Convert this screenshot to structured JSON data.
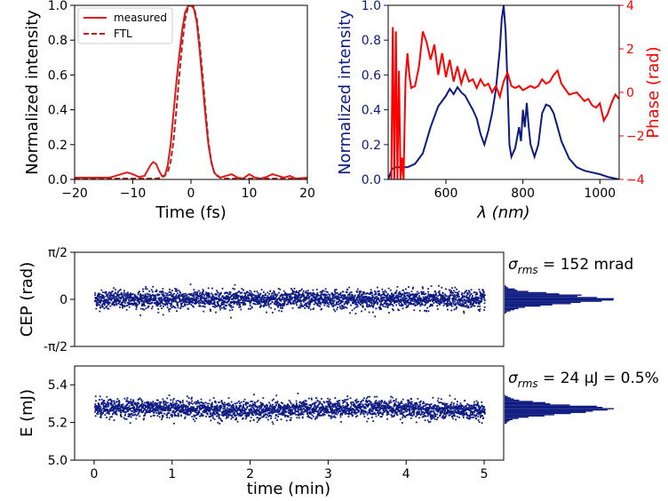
{
  "chart_data": [
    {
      "type": "line",
      "xlabel": "Time (fs)",
      "ylabel": "Normalized intensity",
      "xlim": [
        -20,
        20
      ],
      "ylim": [
        0,
        1.0
      ],
      "xticks": [
        -20,
        -10,
        0,
        10,
        20
      ],
      "yticks": [
        0.0,
        0.2,
        0.4,
        0.6,
        0.8,
        1.0
      ],
      "xtick_labels": [
        "−20",
        "−10",
        "0",
        "10",
        "20"
      ],
      "ytick_labels": [
        "0.0",
        "0.2",
        "0.4",
        "0.6",
        "0.8",
        "1.0"
      ],
      "legend": {
        "placement": "top-left",
        "entries": [
          "measured",
          "FTL"
        ]
      },
      "series": [
        {
          "name": "measured",
          "color": "#e31a1c",
          "style": "solid",
          "x": [
            -20,
            -14,
            -13,
            -12,
            -11,
            -10,
            -9,
            -8,
            -7.5,
            -7,
            -6.5,
            -6,
            -5.5,
            -5,
            -4.5,
            -4,
            -3.5,
            -3,
            -2.5,
            -2,
            -1.5,
            -1,
            -0.5,
            0,
            0.5,
            1,
            1.5,
            2,
            2.5,
            3,
            3.5,
            4,
            4.5,
            5,
            6,
            7,
            8,
            9,
            10,
            11,
            12,
            13,
            14,
            15,
            16,
            17,
            18,
            20
          ],
          "y": [
            0.01,
            0.01,
            0.02,
            0.03,
            0.04,
            0.03,
            0.015,
            0.02,
            0.05,
            0.08,
            0.1,
            0.09,
            0.05,
            0.02,
            0.02,
            0.08,
            0.2,
            0.38,
            0.56,
            0.72,
            0.86,
            0.96,
            0.995,
            1.0,
            0.98,
            0.9,
            0.74,
            0.55,
            0.36,
            0.2,
            0.1,
            0.04,
            0.02,
            0.01,
            0.02,
            0.03,
            0.01,
            0.005,
            0.03,
            0.01,
            0.005,
            0.015,
            0.03,
            0.02,
            0.01,
            0.02,
            0.005,
            0.01
          ]
        },
        {
          "name": "FTL",
          "color": "#b22222",
          "style": "dashed",
          "x": [
            -20,
            -6,
            -5,
            -4,
            -3.5,
            -3,
            -2.5,
            -2,
            -1.5,
            -1,
            -0.5,
            0,
            0.5,
            1,
            1.5,
            2,
            2.5,
            3,
            3.5,
            4,
            5,
            6,
            20
          ],
          "y": [
            0.005,
            0.005,
            0.01,
            0.04,
            0.1,
            0.22,
            0.4,
            0.6,
            0.78,
            0.92,
            0.99,
            1.0,
            0.99,
            0.92,
            0.78,
            0.6,
            0.4,
            0.22,
            0.1,
            0.04,
            0.01,
            0.005,
            0.005
          ]
        }
      ]
    },
    {
      "type": "line",
      "xlabel": "λ (nm)",
      "ylabel": "Normalized intensity",
      "y2label": "Phase (rad)",
      "xlim": [
        450,
        1050
      ],
      "ylim": [
        0,
        1.0
      ],
      "y2lim": [
        -4,
        4
      ],
      "xticks": [
        600,
        800,
        1000
      ],
      "yticks": [
        0.0,
        0.2,
        0.4,
        0.6,
        0.8,
        1.0
      ],
      "y2ticks": [
        -4,
        -2,
        0,
        2,
        4
      ],
      "xtick_labels": [
        "600",
        "800",
        "1000"
      ],
      "ytick_labels": [
        "0.0",
        "0.2",
        "0.4",
        "0.6",
        "0.8",
        "1.0"
      ],
      "y2tick_labels": [
        "−4",
        "−2",
        "0",
        "2",
        "4"
      ],
      "colors": {
        "left_axis": "#0d1a80",
        "right_axis": "#ff0000"
      },
      "series": [
        {
          "axis": "left",
          "color": "#0d1a80",
          "x": [
            450,
            460,
            470,
            500,
            520,
            540,
            560,
            580,
            600,
            610,
            620,
            630,
            640,
            650,
            660,
            670,
            680,
            690,
            700,
            710,
            720,
            730,
            740,
            745,
            750,
            755,
            760,
            765,
            770,
            780,
            790,
            795,
            800,
            805,
            810,
            815,
            820,
            830,
            840,
            850,
            860,
            870,
            880,
            890,
            900,
            920,
            940,
            960,
            980,
            1000,
            1020,
            1040,
            1050
          ],
          "y": [
            0.0,
            0.06,
            0.07,
            0.07,
            0.09,
            0.15,
            0.3,
            0.42,
            0.48,
            0.52,
            0.49,
            0.53,
            0.5,
            0.48,
            0.44,
            0.4,
            0.35,
            0.26,
            0.2,
            0.28,
            0.38,
            0.52,
            0.75,
            0.92,
            1.0,
            0.85,
            0.55,
            0.2,
            0.13,
            0.18,
            0.3,
            0.22,
            0.4,
            0.3,
            0.44,
            0.3,
            0.2,
            0.13,
            0.2,
            0.38,
            0.43,
            0.42,
            0.38,
            0.3,
            0.22,
            0.12,
            0.07,
            0.05,
            0.04,
            0.03,
            0.015,
            0.005,
            0.0
          ]
        },
        {
          "axis": "right",
          "color": "#ff0000",
          "x": [
            458,
            462,
            466,
            470,
            474,
            478,
            482,
            486,
            490,
            495,
            500,
            505,
            510,
            520,
            530,
            540,
            550,
            560,
            570,
            580,
            590,
            600,
            610,
            620,
            630,
            640,
            650,
            660,
            670,
            680,
            690,
            700,
            710,
            720,
            730,
            740,
            750,
            760,
            770,
            780,
            790,
            800,
            810,
            820,
            830,
            840,
            850,
            860,
            870,
            880,
            890,
            900,
            920,
            940,
            960,
            970,
            980,
            990,
            1000,
            1010,
            1020,
            1030,
            1040,
            1050
          ],
          "y": [
            -4.0,
            3.0,
            -4.0,
            2.8,
            -4.0,
            1.0,
            -4.0,
            -3.0,
            -4.0,
            0.6,
            1.8,
            0.8,
            0.2,
            0.3,
            1.2,
            2.8,
            2.3,
            1.5,
            2.2,
            0.8,
            1.8,
            0.7,
            1.5,
            0.5,
            1.2,
            0.4,
            1.0,
            0.5,
            0.6,
            0.2,
            0.6,
            0.3,
            0.4,
            0.0,
            0.3,
            -0.2,
            0.5,
            0.9,
            0.3,
            0.2,
            0.3,
            0.1,
            0.2,
            0.3,
            0.2,
            0.3,
            0.6,
            0.4,
            0.5,
            0.8,
            1.0,
            0.4,
            -0.1,
            0.0,
            -0.4,
            -0.3,
            -0.6,
            -0.7,
            -0.5,
            -1.3,
            -1.0,
            -0.5,
            -0.1,
            -0.3
          ]
        }
      ]
    },
    {
      "type": "scatter",
      "xlabel": "",
      "ylabel": "CEP (rad)",
      "xlim": [
        -0.25,
        5.25
      ],
      "ylim": [
        -1.5708,
        1.5708
      ],
      "yticks": [
        1.5708,
        0,
        -1.5708
      ],
      "ytick_labels": [
        "π/2",
        "0",
        "-π/2"
      ],
      "marker_color": "#0d1a80",
      "x_range": [
        0,
        5
      ],
      "y_center": 0.0,
      "y_rms": 0.152,
      "annotation": "σrms = 152 mrad",
      "annotation_subscript": "rms",
      "annotation_prefix": "σ",
      "annotation_text": " = 152 mrad",
      "histogram": "horizontal, right of panel"
    },
    {
      "type": "scatter",
      "xlabel": "time (min)",
      "ylabel": "E (mJ)",
      "xlim": [
        -0.25,
        5.25
      ],
      "ylim": [
        5.0,
        5.5
      ],
      "xticks": [
        0,
        1,
        2,
        3,
        4,
        5
      ],
      "xtick_labels": [
        "0",
        "1",
        "2",
        "3",
        "4",
        "5"
      ],
      "yticks": [
        5.0,
        5.2,
        5.4
      ],
      "ytick_labels": [
        "5.0",
        "5.2",
        "5.4"
      ],
      "marker_color": "#0d1a80",
      "x_range": [
        0,
        5
      ],
      "y_center": 5.27,
      "y_rms": 0.024,
      "annotation_prefix": "σ",
      "annotation_subscript": "rms",
      "annotation_text": " = 24 µJ = 0.5%",
      "histogram": "horizontal, right of panel"
    }
  ]
}
